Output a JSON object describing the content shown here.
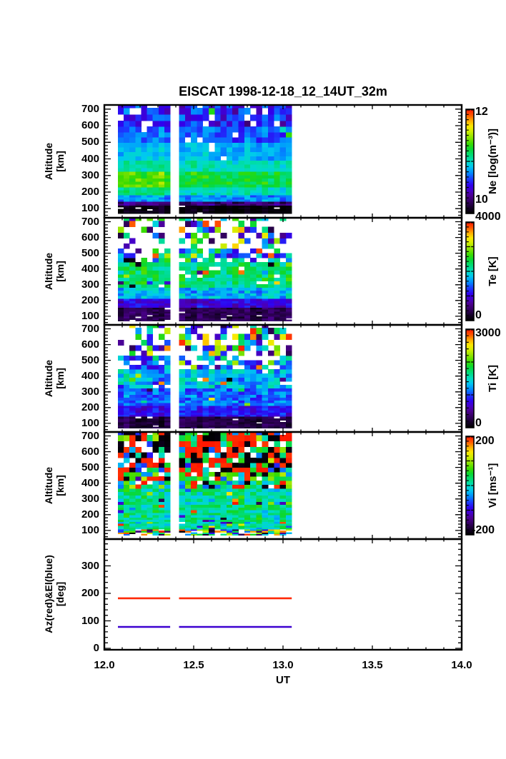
{
  "title": "EISCAT 1998-12-18_12_14UT_32m",
  "colors": {
    "background": "#ffffff",
    "frame": "#000000",
    "az_line": "#ff2800",
    "el_line": "#3c00d0"
  },
  "colormap": [
    [
      0.0,
      "#000000"
    ],
    [
      0.05,
      "#120024"
    ],
    [
      0.11,
      "#32005e"
    ],
    [
      0.17,
      "#4c0090"
    ],
    [
      0.22,
      "#4600c8"
    ],
    [
      0.27,
      "#2f00ee"
    ],
    [
      0.33,
      "#1b3cff"
    ],
    [
      0.39,
      "#008cff"
    ],
    [
      0.45,
      "#00c8f0"
    ],
    [
      0.5,
      "#00ddc0"
    ],
    [
      0.56,
      "#00dc78"
    ],
    [
      0.62,
      "#0ad830"
    ],
    [
      0.67,
      "#3cdc00"
    ],
    [
      0.73,
      "#8ce400"
    ],
    [
      0.79,
      "#d2ee00"
    ],
    [
      0.84,
      "#fce800"
    ],
    [
      0.89,
      "#ffaa00"
    ],
    [
      0.94,
      "#ff5a00"
    ],
    [
      1.0,
      "#ff1400"
    ]
  ],
  "chart_data": {
    "type": "heatmap",
    "title": "EISCAT 1998-12-18_12_14UT_32m",
    "x": {
      "label": "UT",
      "range": [
        12.0,
        14.0
      ],
      "tick_values": [
        12.0,
        12.5,
        13.0,
        13.5,
        14.0
      ],
      "tick_labels": [
        "12.0",
        "12.5",
        "13.0",
        "13.5",
        "14.0"
      ],
      "minor_step": 0.1
    },
    "coverage": {
      "start_ut": 12.08,
      "end_ut": 13.05,
      "gap_ut": [
        12.36,
        12.42
      ]
    },
    "panels": [
      {
        "id": "ne",
        "ylabel_line1": "Altitude",
        "ylabel_line2": "[km]",
        "y_range": [
          45,
          725
        ],
        "ytick_values": [
          100,
          200,
          300,
          400,
          500,
          600,
          700
        ],
        "ytick_labels": [
          "100",
          "200",
          "300",
          "400",
          "500",
          "600",
          "700"
        ],
        "minor_step_km": 20,
        "colorbar": {
          "title": "Ne [log(m⁻³)]",
          "min": 10,
          "max": 12,
          "min_label": "10",
          "max_label": "12",
          "minor_step": 0.1,
          "major_step": 1
        },
        "description": "Electron density: black band below 120 km, blue 120-200 km, green maximum 230-330 km (brighter/yellow-green before 12.4 UT), cyan 330-400 km, blue with speckles and gaps above 500 km.",
        "bands": [
          {
            "alt": [
              70,
              120
            ],
            "t": [
              0.0,
              0.05
            ],
            "missing": 0.05
          },
          {
            "alt": [
              120,
              145
            ],
            "t": [
              0.08,
              0.22
            ]
          },
          {
            "alt": [
              145,
              185
            ],
            "t": [
              0.34,
              0.46
            ]
          },
          {
            "alt": [
              185,
              230
            ],
            "t": [
              0.46,
              0.56
            ],
            "early": 0.05
          },
          {
            "alt": [
              230,
              330
            ],
            "t": [
              0.56,
              0.68
            ],
            "early": 0.06
          },
          {
            "alt": [
              330,
              400
            ],
            "t": [
              0.47,
              0.56
            ]
          },
          {
            "alt": [
              400,
              500
            ],
            "t": [
              0.4,
              0.48
            ],
            "missing": 0.02
          },
          {
            "alt": [
              500,
              600
            ],
            "t": [
              0.3,
              0.42
            ],
            "speckle": 0.05,
            "speckle_max": 0.8,
            "missing": 0.07
          },
          {
            "alt": [
              600,
              720
            ],
            "t": [
              0.2,
              0.4
            ],
            "speckle": 0.1,
            "speckle_max": 0.8,
            "missing": 0.13
          }
        ]
      },
      {
        "id": "te",
        "ylabel_line1": "Altitude",
        "ylabel_line2": "[km]",
        "y_range": [
          45,
          725
        ],
        "ytick_values": [
          100,
          200,
          300,
          400,
          500,
          600,
          700
        ],
        "ytick_labels": [
          "100",
          "200",
          "300",
          "400",
          "500",
          "600",
          "700"
        ],
        "minor_step_km": 20,
        "colorbar": {
          "title": "Te [K]",
          "min": 0,
          "max": 4000,
          "min_label": "0",
          "max_label": "4000",
          "minor_step": 200,
          "major_step": 1000
        },
        "description": "Electron temperature: dark purple below 150 km, blue 150-210 km, cyan-green 210-430 km with warm speckles, very noisy scattered cells with many data gaps above 430 km.",
        "bands": [
          {
            "alt": [
              70,
              150
            ],
            "t": [
              0.06,
              0.14
            ],
            "missing": 0.04
          },
          {
            "alt": [
              150,
              210
            ],
            "t": [
              0.18,
              0.32
            ]
          },
          {
            "alt": [
              210,
              290
            ],
            "t": [
              0.36,
              0.52
            ]
          },
          {
            "alt": [
              290,
              430
            ],
            "t": [
              0.48,
              0.66
            ],
            "speckle": 0.06,
            "missing": 0.08
          },
          {
            "alt": [
              430,
              520
            ],
            "t": [
              0.25,
              0.75
            ],
            "speckle": 0.18,
            "missing": 0.32
          },
          {
            "alt": [
              520,
              720
            ],
            "t": [
              0.05,
              0.95
            ],
            "speckle": 0.25,
            "missing": 0.55
          }
        ]
      },
      {
        "id": "ti",
        "ylabel_line1": "Altitude",
        "ylabel_line2": "[km]",
        "y_range": [
          45,
          725
        ],
        "ytick_values": [
          100,
          200,
          300,
          400,
          500,
          600,
          700
        ],
        "ytick_labels": [
          "100",
          "200",
          "300",
          "400",
          "500",
          "600",
          "700"
        ],
        "minor_step_km": 20,
        "colorbar": {
          "title": "Ti [K]",
          "min": 0,
          "max": 3000,
          "min_label": "0",
          "max_label": "3000",
          "minor_step": 200,
          "major_step": 1000
        },
        "description": "Ion temperature: dark purple below 140 km, blue 140-320 km, blue-cyan with colored speckles 320-430 km, noisy scattered cells with many gaps above 430 km.",
        "bands": [
          {
            "alt": [
              70,
              140
            ],
            "t": [
              0.05,
              0.12
            ],
            "missing": 0.04
          },
          {
            "alt": [
              140,
              220
            ],
            "t": [
              0.22,
              0.34
            ]
          },
          {
            "alt": [
              220,
              320
            ],
            "t": [
              0.28,
              0.44
            ],
            "speckle": 0.04
          },
          {
            "alt": [
              320,
              430
            ],
            "t": [
              0.34,
              0.54
            ],
            "speckle": 0.08,
            "missing": 0.06
          },
          {
            "alt": [
              430,
              530
            ],
            "t": [
              0.22,
              0.58
            ],
            "speckle": 0.16,
            "missing": 0.28
          },
          {
            "alt": [
              530,
              720
            ],
            "t": [
              0.06,
              0.92
            ],
            "speckle": 0.22,
            "missing": 0.48
          }
        ]
      },
      {
        "id": "vi",
        "ylabel_line1": "Altitude",
        "ylabel_line2": "[km]",
        "y_range": [
          45,
          725
        ],
        "ytick_values": [
          100,
          200,
          300,
          400,
          500,
          600,
          700
        ],
        "ytick_labels": [
          "100",
          "200",
          "300",
          "400",
          "500",
          "600",
          "700"
        ],
        "minor_step_km": 20,
        "colorbar": {
          "title": "Vi [ms⁻¹]",
          "min": -200,
          "max": 200,
          "min_label": "-200",
          "max_label": "200",
          "minor_step": 20,
          "major_step": 100
        },
        "description": "Ion velocity: noisy colored row near 100 km, green-cyan (near zero velocity) 110-370 km with speckles, increasingly dominated by saturated red (>=200) and black (<=-200) cells above 470 km.",
        "bands": [
          {
            "alt": [
              70,
              105
            ],
            "t": [
              0.0,
              1.0
            ],
            "speckle": 0.9,
            "missing": 0.25
          },
          {
            "alt": [
              105,
              150
            ],
            "t": [
              0.45,
              0.62
            ],
            "speckle": 0.2,
            "missing": 0.02
          },
          {
            "alt": [
              150,
              370
            ],
            "t": [
              0.44,
              0.64
            ],
            "speckle": 0.08
          },
          {
            "alt": [
              370,
              470
            ],
            "t": [
              0.35,
              0.8
            ],
            "speckle": 0.12,
            "missing": 0.05,
            "extremes": {
              "p": 0.3,
              "hi": 0.55
            }
          },
          {
            "alt": [
              470,
              720
            ],
            "t": [
              0.3,
              0.75
            ],
            "speckle": 0.08,
            "missing": 0.13,
            "extremes": {
              "p": 0.66,
              "hi": 0.58
            }
          }
        ]
      },
      {
        "id": "azel",
        "ylabel_line1": "Az(red)&El(blue)",
        "ylabel_line2": "[deg]",
        "y_range": [
          0,
          400
        ],
        "ytick_values": [
          0,
          100,
          200,
          300
        ],
        "ytick_labels": [
          "0",
          "100",
          "200",
          "300"
        ],
        "minor_step_deg": 20,
        "type": "line",
        "lines": [
          {
            "name": "Az",
            "color_key": "az_line",
            "value_deg": 182
          },
          {
            "name": "El",
            "color_key": "el_line",
            "value_deg": 78
          }
        ],
        "description": "Antenna pointing: constant azimuth (red) near 182 deg and constant elevation (blue) near 78 deg over the observation interval 12.08-13.05 UT with a gap at 12.36-12.42 UT."
      }
    ]
  }
}
